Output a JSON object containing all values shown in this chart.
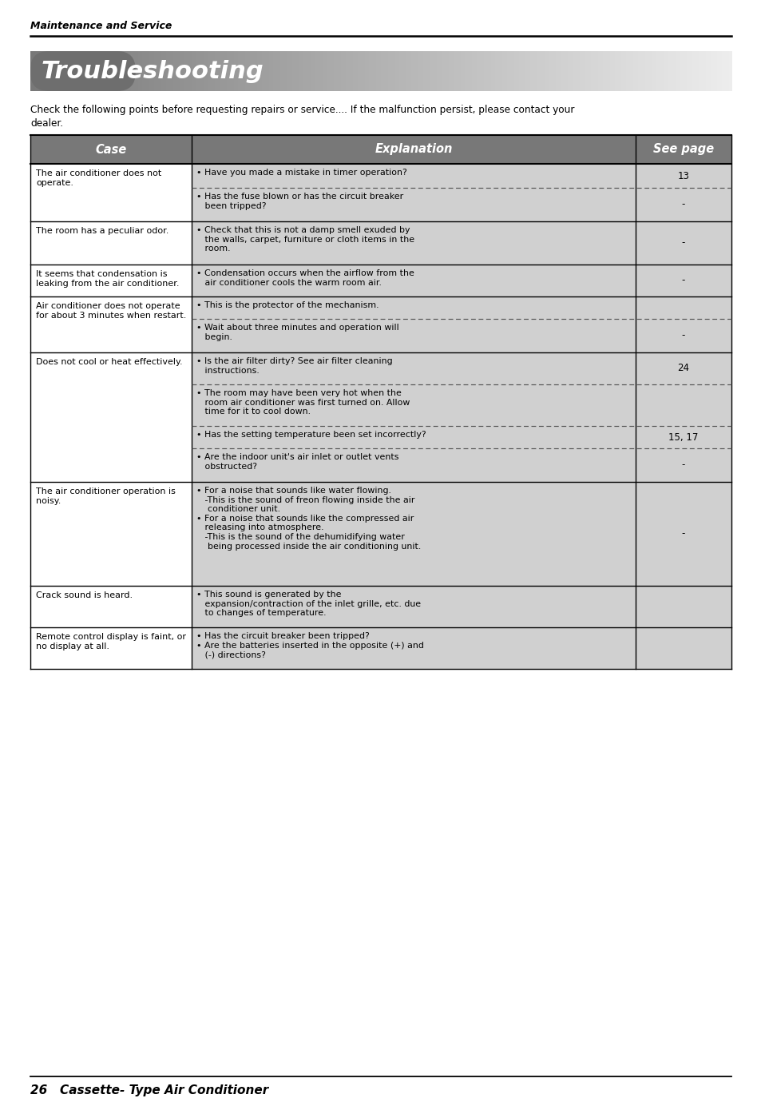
{
  "page_title": "Maintenance and Service",
  "section_title": "Troubleshooting",
  "intro_line1": "Check the following points before requesting repairs or service.... If the malfunction persist, please contact your",
  "intro_line2": "dealer.",
  "footer_text": "26   Cassette- Type Air Conditioner",
  "header_bg_color": "#787878",
  "col_headers": [
    "Case",
    "Explanation",
    "See page"
  ],
  "expl_col_bg": "#d0d0d0",
  "rows": [
    {
      "case": "The air conditioner does not\noperate.",
      "sub_rows": [
        {
          "text": "• Have you made a mistake in timer operation?",
          "see_page": "13",
          "dashed_below": true
        },
        {
          "text": "• Has the fuse blown or has the circuit breaker\n   been tripped?",
          "see_page": "-",
          "dashed_below": false
        }
      ]
    },
    {
      "case": "The room has a peculiar odor.",
      "sub_rows": [
        {
          "text": "• Check that this is not a damp smell exuded by\n   the walls, carpet, furniture or cloth items in the\n   room.",
          "see_page": "-",
          "dashed_below": false
        }
      ]
    },
    {
      "case": "It seems that condensation is\nleaking from the air conditioner.",
      "sub_rows": [
        {
          "text": "• Condensation occurs when the airflow from the\n   air conditioner cools the warm room air.",
          "see_page": "-",
          "dashed_below": false
        }
      ]
    },
    {
      "case": "Air conditioner does not operate\nfor about 3 minutes when restart.",
      "sub_rows": [
        {
          "text": "• This is the protector of the mechanism.",
          "see_page": "",
          "dashed_below": true
        },
        {
          "text": "• Wait about three minutes and operation will\n   begin.",
          "see_page": "-",
          "dashed_below": false
        }
      ]
    },
    {
      "case": "Does not cool or heat effectively.",
      "sub_rows": [
        {
          "text": "• Is the air filter dirty? See air filter cleaning\n   instructions.",
          "see_page": "24",
          "dashed_below": true
        },
        {
          "text": "• The room may have been very hot when the\n   room air conditioner was first turned on. Allow\n   time for it to cool down.",
          "see_page": "",
          "dashed_below": true
        },
        {
          "text": "• Has the setting temperature been set incorrectly?",
          "see_page": "15, 17",
          "dashed_below": true
        },
        {
          "text": "• Are the indoor unit's air inlet or outlet vents\n   obstructed?",
          "see_page": "-",
          "dashed_below": false
        }
      ]
    },
    {
      "case": "The air conditioner operation is\nnoisy.",
      "sub_rows": [
        {
          "text": "• For a noise that sounds like water flowing.\n   -This is the sound of freon flowing inside the air\n    conditioner unit.\n• For a noise that sounds like the compressed air\n   releasing into atmosphere.\n   -This is the sound of the dehumidifying water\n    being processed inside the air conditioning unit.",
          "see_page": "-",
          "dashed_below": false
        }
      ]
    },
    {
      "case": "Crack sound is heard.",
      "sub_rows": [
        {
          "text": "• This sound is generated by the\n   expansion/contraction of the inlet grille, etc. due\n   to changes of temperature.",
          "see_page": "",
          "dashed_below": false
        }
      ]
    },
    {
      "case": "Remote control display is faint, or\nno display at all.",
      "sub_rows": [
        {
          "text": "• Has the circuit breaker been tripped?\n• Are the batteries inserted in the opposite (+) and\n   (-) directions?",
          "see_page": "",
          "dashed_below": false
        }
      ]
    }
  ],
  "sub_row_heights": [
    [
      30,
      42
    ],
    [
      54
    ],
    [
      40
    ],
    [
      28,
      42
    ],
    [
      40,
      52,
      28,
      42
    ],
    [
      130
    ],
    [
      52
    ],
    [
      52
    ]
  ]
}
